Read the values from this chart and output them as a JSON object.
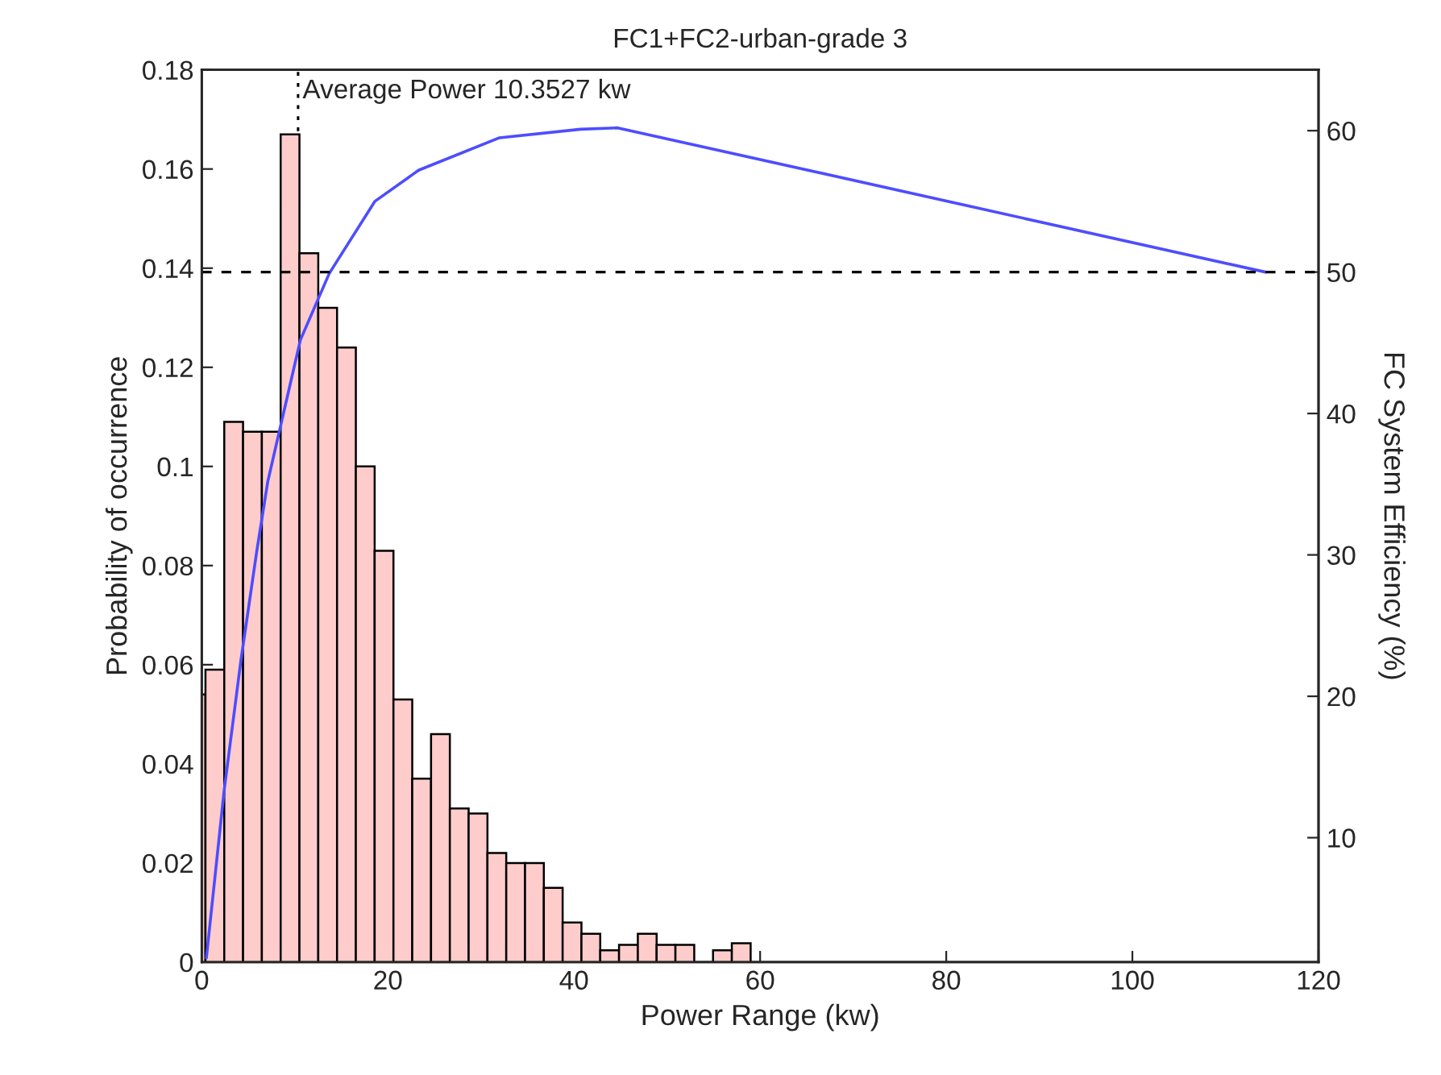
{
  "chart_data": {
    "type": "histogram",
    "title": "FC1+FC2-urban-grade 3",
    "xlabel": "Power Range (kw)",
    "ylabel": "Probability of occurrence",
    "y2label": "FC System Efficiency (%)",
    "bins": [
      0,
      0.4,
      2.42,
      4.44,
      6.46,
      8.48,
      10.5,
      12.52,
      14.54,
      16.56,
      18.58,
      20.6,
      22.62,
      24.64,
      26.66,
      28.68,
      30.7,
      32.72,
      34.74,
      36.76,
      38.78,
      40.8,
      42.82,
      44.84,
      46.86,
      48.88,
      50.9,
      52.92,
      54.94,
      56.96,
      58.98
    ],
    "values": [
      0.054,
      0.059,
      0.109,
      0.107,
      0.107,
      0.167,
      0.143,
      0.132,
      0.124,
      0.1,
      0.083,
      0.053,
      0.037,
      0.046,
      0.031,
      0.03,
      0.022,
      0.02,
      0.02,
      0.015,
      0.008,
      0.0057,
      0.0024,
      0.0035,
      0.0057,
      0.0035,
      0.0035,
      0,
      0.0024,
      0.0038
    ],
    "color": "#ffcccc",
    "series": [
      {
        "type": "line",
        "axis": "y2",
        "color": "#4d4dff",
        "x": [
          0.5,
          2.4,
          4.2,
          5.9,
          7.1,
          10.6,
          13.7,
          18.6,
          23.3,
          32,
          40.7,
          44.7,
          114.3
        ],
        "values": [
          1.5,
          13.3,
          22.5,
          30.2,
          35.2,
          45.2,
          49.9,
          55,
          57.2,
          59.5,
          60.1,
          60.2,
          50
        ]
      }
    ],
    "xlim": [
      0,
      120
    ],
    "xticks": [
      0,
      20,
      40,
      60,
      80,
      100,
      120
    ],
    "ylim": [
      0,
      0.18
    ],
    "yticks": [
      0,
      0.02,
      0.04,
      0.06,
      0.08,
      0.1,
      0.12,
      0.14,
      0.16,
      0.18
    ],
    "y2lim": [
      1.2,
      64.3
    ],
    "y2ticks": [
      10,
      20,
      30,
      40,
      50,
      60
    ],
    "ref_lines": [
      {
        "axis": "x",
        "value": 10.3527,
        "label": "Average Power 10.3527 kw",
        "line_style": "dotted",
        "color": "#000000"
      },
      {
        "axis": "y2",
        "value": 50,
        "line_style": "dashed",
        "color": "#000000"
      }
    ],
    "grid": false
  }
}
